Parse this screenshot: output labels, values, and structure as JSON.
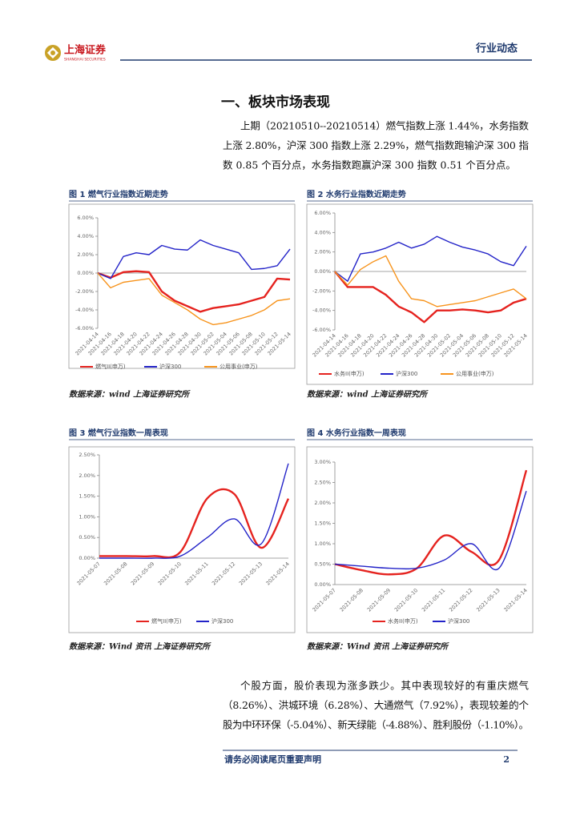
{
  "header": {
    "brand": "上海证券",
    "brand_en": "SHANGHAI SECURITIES",
    "section": "行业动态"
  },
  "heading": "一、板块市场表现",
  "paragraphs": [
    [
      "上期（20210510--20210514）燃气指数上涨 1.44%，水务指数",
      "上涨 2.80%，沪深 300 指数上涨 2.29%，燃气指数跑输沪深 300 指",
      "数 0.85 个百分点，水务指数跑赢沪深 300 指数 0.51 个百分点。"
    ],
    [
      "个股方面，股价表现为涨多跌少。其中表现较好的有重庆燃气",
      "（8.26%）、洪城环境（6.28%）、大通燃气（7.92%），表现较差的个",
      "股为中环环保（-5.04%）、新天绿能（-4.88%）、胜利股份（-1.10%）。"
    ]
  ],
  "chart_data": [
    {
      "type": "line",
      "title": "图 1 燃气行业指数近期走势",
      "source": "数据来源：wind 上海证券研究所",
      "categories": [
        "2021-04-14",
        "2021-04-16",
        "2021-04-18",
        "2021-04-20",
        "2021-04-22",
        "2021-04-24",
        "2021-04-26",
        "2021-04-28",
        "2021-04-30",
        "2021-05-02",
        "2021-05-04",
        "2021-05-06",
        "2021-05-08",
        "2021-05-10",
        "2021-05-12",
        "2021-05-14"
      ],
      "series": [
        {
          "name": "燃气II(申万)",
          "color": "#e5231f",
          "values": [
            0,
            -0.5,
            0.1,
            0.2,
            0.1,
            -2.0,
            -3.0,
            -3.6,
            -4.2,
            -3.8,
            -3.6,
            -3.4,
            -3.0,
            -2.6,
            -0.6,
            -0.7
          ]
        },
        {
          "name": "沪深300",
          "color": "#2323c8",
          "values": [
            0,
            -0.6,
            1.8,
            2.2,
            2.0,
            3.0,
            2.6,
            2.5,
            3.6,
            3.0,
            2.6,
            2.2,
            0.4,
            0.5,
            0.8,
            2.6
          ]
        },
        {
          "name": "公用事业(申万)",
          "color": "#f7941d",
          "values": [
            0,
            -1.6,
            -1.0,
            -0.8,
            -0.6,
            -2.4,
            -3.2,
            -4.0,
            -5.0,
            -5.6,
            -5.4,
            -5.0,
            -4.6,
            -4.0,
            -3.0,
            -2.8
          ]
        }
      ],
      "ylim": [
        -6,
        6
      ],
      "yticks": [
        {
          "value": 6,
          "label": "6.00%"
        },
        {
          "value": 4,
          "label": "4.00%"
        },
        {
          "value": 2,
          "label": "2.00%"
        },
        {
          "value": 0,
          "label": "0.00%"
        },
        {
          "value": -2,
          "label": "-2.00%"
        },
        {
          "value": -4,
          "label": "-4.00%"
        },
        {
          "value": -6,
          "label": "-6.00%"
        }
      ]
    },
    {
      "type": "line",
      "title": "图 2 水务行业指数近期走势",
      "source": "数据来源：wind 上海证券研究所",
      "categories": [
        "2021-04-14",
        "2021-04-16",
        "2021-04-18",
        "2021-04-20",
        "2021-04-22",
        "2021-04-24",
        "2021-04-26",
        "2021-04-28",
        "2021-04-30",
        "2021-05-02",
        "2021-05-04",
        "2021-05-06",
        "2021-05-08",
        "2021-05-10",
        "2021-05-12",
        "2021-05-14"
      ],
      "series": [
        {
          "name": "水务II(申万)",
          "color": "#e5231f",
          "values": [
            0,
            -1.6,
            -1.6,
            -1.6,
            -2.4,
            -3.6,
            -4.2,
            -5.2,
            -4.0,
            -4.0,
            -3.9,
            -4.0,
            -4.2,
            -4.0,
            -3.2,
            -2.8
          ]
        },
        {
          "name": "沪深300",
          "color": "#2323c8",
          "values": [
            0,
            -1.0,
            1.8,
            2.0,
            2.4,
            3.0,
            2.4,
            2.8,
            3.6,
            3.0,
            2.5,
            2.2,
            1.8,
            1.0,
            0.6,
            2.6
          ]
        },
        {
          "name": "公用事业(申万)",
          "color": "#f7941d",
          "values": [
            0,
            -1.4,
            0.2,
            1.0,
            1.6,
            -1.0,
            -2.8,
            -3.0,
            -3.6,
            -3.4,
            -3.2,
            -3.0,
            -2.6,
            -2.2,
            -1.8,
            -2.8
          ]
        }
      ],
      "ylim": [
        -6,
        6
      ],
      "yticks": [
        {
          "value": 6,
          "label": "6.00%"
        },
        {
          "value": 4,
          "label": "4.00%"
        },
        {
          "value": 2,
          "label": "2.00%"
        },
        {
          "value": 0,
          "label": "0.00%"
        },
        {
          "value": -2,
          "label": "-2.00%"
        },
        {
          "value": -4,
          "label": "-4.00%"
        },
        {
          "value": -6,
          "label": "-6.00%"
        }
      ]
    },
    {
      "type": "line",
      "title": "图 3 燃气行业指数一周表现",
      "source": "数据来源：Wind 资讯 上海证券研究所",
      "categories": [
        "2021-05-07",
        "2021-05-08",
        "2021-05-09",
        "2021-05-10",
        "2021-05-11",
        "2021-05-12",
        "2021-05-13",
        "2021-05-14"
      ],
      "series": [
        {
          "name": "燃气II(申万)",
          "color": "#e5231f",
          "values": [
            0.05,
            0.05,
            0.05,
            0.15,
            1.45,
            1.55,
            0.25,
            1.44
          ]
        },
        {
          "name": "沪深300",
          "color": "#2323c8",
          "values": [
            0.0,
            0.0,
            0.0,
            0.05,
            0.5,
            0.95,
            0.35,
            2.29
          ]
        }
      ],
      "ylim": [
        0,
        2.5
      ],
      "yticks": [
        {
          "value": 0,
          "label": "0.00%"
        },
        {
          "value": 0.5,
          "label": "0.50%"
        },
        {
          "value": 1,
          "label": "1.00%"
        },
        {
          "value": 1.5,
          "label": "1.50%"
        },
        {
          "value": 2,
          "label": "2.00%"
        },
        {
          "value": 2.5,
          "label": "2.50%"
        }
      ]
    },
    {
      "type": "line",
      "title": "图 4 水务行业指数一周表现",
      "source": "数据来源：Wind 资讯 上海证券研究所",
      "categories": [
        "2021-05-07",
        "2021-05-08",
        "2021-05-09",
        "2021-05-10",
        "2021-05-11",
        "2021-05-12",
        "2021-05-13",
        "2021-05-14"
      ],
      "series": [
        {
          "name": "水务II(申万)",
          "color": "#e5231f",
          "values": [
            0.5,
            0.35,
            0.25,
            0.4,
            1.2,
            0.8,
            0.6,
            2.8
          ]
        },
        {
          "name": "沪深300",
          "color": "#2323c8",
          "values": [
            0.5,
            0.45,
            0.4,
            0.4,
            0.6,
            1.0,
            0.4,
            2.29
          ]
        }
      ],
      "ylim": [
        0,
        3
      ],
      "yticks": [
        {
          "value": 0,
          "label": "0.00%"
        },
        {
          "value": 0.5,
          "label": "0.50%"
        },
        {
          "value": 1,
          "label": "1.00%"
        },
        {
          "value": 1.5,
          "label": "1.50%"
        },
        {
          "value": 2,
          "label": "2.00%"
        },
        {
          "value": 2.5,
          "label": "2.50%"
        },
        {
          "value": 3,
          "label": "3.00%"
        }
      ]
    }
  ],
  "footer": {
    "notice": "请务必阅读尾页重要声明",
    "page": "2"
  }
}
